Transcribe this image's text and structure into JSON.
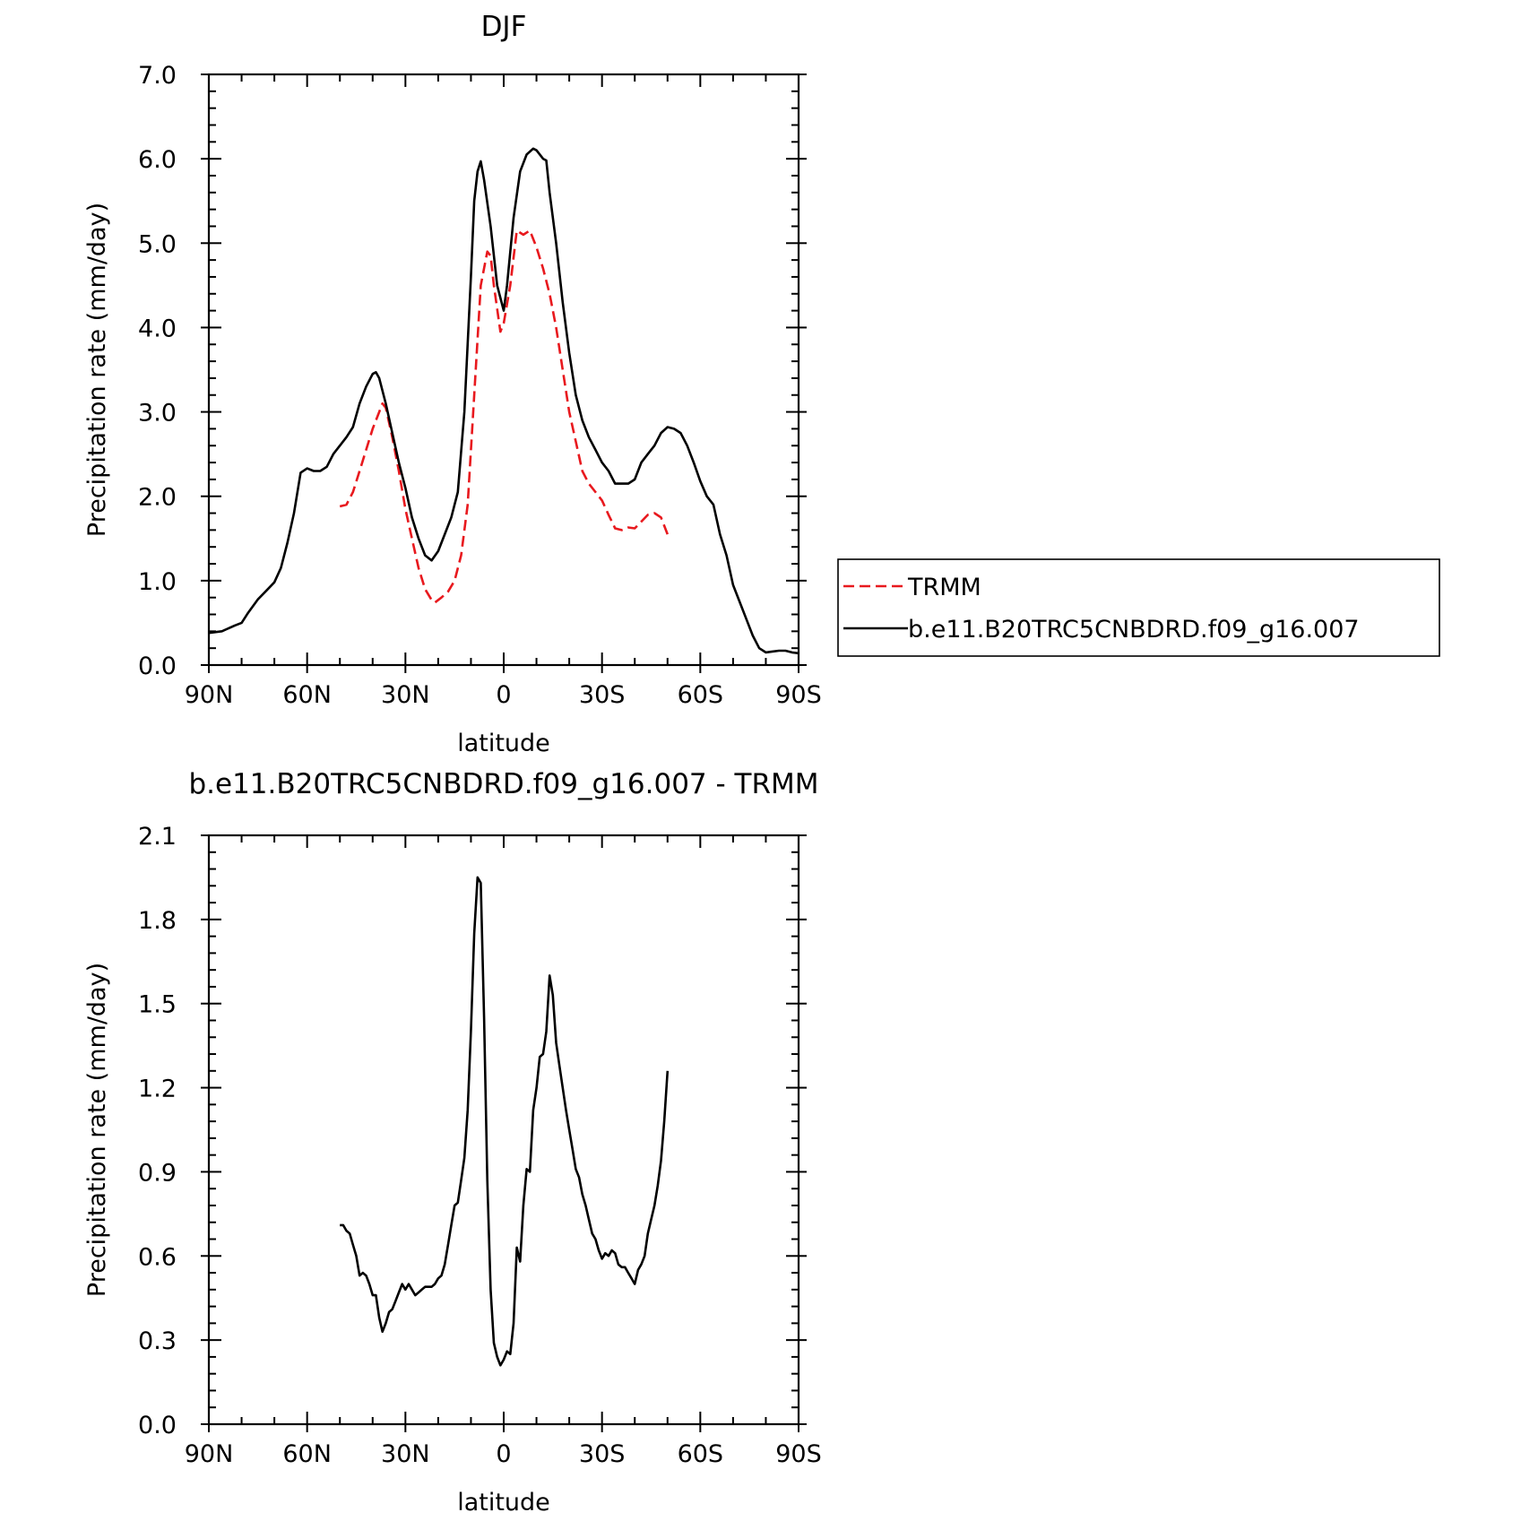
{
  "chart_data": [
    {
      "type": "line",
      "title": "DJF",
      "xlabel": "latitude",
      "ylabel": "Precipitation rate (mm/day)",
      "xlim": [
        90,
        -90
      ],
      "ylim": [
        0,
        7
      ],
      "x_unit": "degrees latitude (positive = N, negative = S)",
      "x_ticks": [
        {
          "value": 90,
          "label": "90N"
        },
        {
          "value": 60,
          "label": "60N"
        },
        {
          "value": 30,
          "label": "30N"
        },
        {
          "value": 0,
          "label": "0"
        },
        {
          "value": -30,
          "label": "30S"
        },
        {
          "value": -60,
          "label": "60S"
        },
        {
          "value": -90,
          "label": "90S"
        }
      ],
      "y_ticks": [
        {
          "value": 0,
          "label": "0.0"
        },
        {
          "value": 1,
          "label": "1.0"
        },
        {
          "value": 2,
          "label": "2.0"
        },
        {
          "value": 3,
          "label": "3.0"
        },
        {
          "value": 4,
          "label": "4.0"
        },
        {
          "value": 5,
          "label": "5.0"
        },
        {
          "value": 6,
          "label": "6.0"
        },
        {
          "value": 7,
          "label": "7.0"
        }
      ],
      "legend": "right",
      "series": [
        {
          "name": "TRMM",
          "color": "#e8191e",
          "dashed": true,
          "points": [
            [
              50,
              1.88
            ],
            [
              48,
              1.9
            ],
            [
              46,
              2.05
            ],
            [
              44,
              2.3
            ],
            [
              42,
              2.55
            ],
            [
              40,
              2.8
            ],
            [
              38,
              3.0
            ],
            [
              37,
              3.1
            ],
            [
              36,
              3.05
            ],
            [
              34,
              2.7
            ],
            [
              32,
              2.3
            ],
            [
              30,
              1.85
            ],
            [
              28,
              1.5
            ],
            [
              26,
              1.15
            ],
            [
              24,
              0.9
            ],
            [
              22,
              0.77
            ],
            [
              21,
              0.74
            ],
            [
              19,
              0.8
            ],
            [
              17,
              0.87
            ],
            [
              15,
              1.0
            ],
            [
              13,
              1.3
            ],
            [
              11,
              1.9
            ],
            [
              9,
              3.2
            ],
            [
              7,
              4.5
            ],
            [
              5,
              4.9
            ],
            [
              4,
              4.85
            ],
            [
              3,
              4.5
            ],
            [
              1,
              3.95
            ],
            [
              0,
              4.05
            ],
            [
              -2,
              4.5
            ],
            [
              -4,
              5.15
            ],
            [
              -6,
              5.1
            ],
            [
              -8,
              5.15
            ],
            [
              -10,
              4.95
            ],
            [
              -12,
              4.7
            ],
            [
              -14,
              4.4
            ],
            [
              -16,
              4.0
            ],
            [
              -18,
              3.5
            ],
            [
              -20,
              3.0
            ],
            [
              -22,
              2.65
            ],
            [
              -24,
              2.3
            ],
            [
              -26,
              2.15
            ],
            [
              -28,
              2.05
            ],
            [
              -30,
              1.95
            ],
            [
              -32,
              1.78
            ],
            [
              -34,
              1.62
            ],
            [
              -36,
              1.6
            ],
            [
              -38,
              1.63
            ],
            [
              -40,
              1.62
            ],
            [
              -42,
              1.7
            ],
            [
              -44,
              1.78
            ],
            [
              -46,
              1.8
            ],
            [
              -48,
              1.75
            ],
            [
              -50,
              1.55
            ]
          ]
        },
        {
          "name": "b.e11.B20TRC5CNBDRD.f09_g16.007",
          "color": "#000000",
          "dashed": false,
          "points": [
            [
              90,
              0.38
            ],
            [
              86,
              0.4
            ],
            [
              82,
              0.47
            ],
            [
              80,
              0.5
            ],
            [
              78,
              0.62
            ],
            [
              75,
              0.78
            ],
            [
              72,
              0.9
            ],
            [
              70,
              0.98
            ],
            [
              68,
              1.15
            ],
            [
              66,
              1.45
            ],
            [
              64,
              1.8
            ],
            [
              62,
              2.28
            ],
            [
              60,
              2.33
            ],
            [
              58,
              2.3
            ],
            [
              56,
              2.3
            ],
            [
              54,
              2.35
            ],
            [
              52,
              2.5
            ],
            [
              50,
              2.6
            ],
            [
              48,
              2.7
            ],
            [
              46,
              2.82
            ],
            [
              44,
              3.1
            ],
            [
              42,
              3.3
            ],
            [
              40,
              3.45
            ],
            [
              39,
              3.47
            ],
            [
              38,
              3.4
            ],
            [
              36,
              3.1
            ],
            [
              34,
              2.75
            ],
            [
              32,
              2.4
            ],
            [
              30,
              2.1
            ],
            [
              28,
              1.75
            ],
            [
              26,
              1.5
            ],
            [
              24,
              1.3
            ],
            [
              22,
              1.24
            ],
            [
              20,
              1.35
            ],
            [
              18,
              1.55
            ],
            [
              16,
              1.75
            ],
            [
              14,
              2.05
            ],
            [
              12,
              3.0
            ],
            [
              10,
              4.6
            ],
            [
              9,
              5.5
            ],
            [
              8,
              5.85
            ],
            [
              7,
              5.97
            ],
            [
              6,
              5.75
            ],
            [
              4,
              5.2
            ],
            [
              2,
              4.5
            ],
            [
              0,
              4.2
            ],
            [
              -1,
              4.5
            ],
            [
              -3,
              5.3
            ],
            [
              -5,
              5.85
            ],
            [
              -7,
              6.05
            ],
            [
              -9,
              6.12
            ],
            [
              -10,
              6.1
            ],
            [
              -12,
              6.0
            ],
            [
              -13,
              5.98
            ],
            [
              -14,
              5.6
            ],
            [
              -16,
              5.0
            ],
            [
              -18,
              4.3
            ],
            [
              -20,
              3.7
            ],
            [
              -22,
              3.2
            ],
            [
              -24,
              2.9
            ],
            [
              -26,
              2.7
            ],
            [
              -28,
              2.55
            ],
            [
              -30,
              2.4
            ],
            [
              -32,
              2.3
            ],
            [
              -34,
              2.15
            ],
            [
              -36,
              2.15
            ],
            [
              -38,
              2.15
            ],
            [
              -40,
              2.2
            ],
            [
              -42,
              2.4
            ],
            [
              -44,
              2.5
            ],
            [
              -46,
              2.6
            ],
            [
              -48,
              2.75
            ],
            [
              -50,
              2.82
            ],
            [
              -52,
              2.8
            ],
            [
              -54,
              2.75
            ],
            [
              -56,
              2.6
            ],
            [
              -58,
              2.4
            ],
            [
              -60,
              2.18
            ],
            [
              -62,
              2.0
            ],
            [
              -64,
              1.9
            ],
            [
              -66,
              1.55
            ],
            [
              -68,
              1.3
            ],
            [
              -70,
              0.95
            ],
            [
              -72,
              0.75
            ],
            [
              -74,
              0.55
            ],
            [
              -76,
              0.35
            ],
            [
              -78,
              0.2
            ],
            [
              -80,
              0.15
            ],
            [
              -82,
              0.16
            ],
            [
              -84,
              0.17
            ],
            [
              -86,
              0.17
            ],
            [
              -88,
              0.15
            ],
            [
              -90,
              0.14
            ]
          ]
        }
      ]
    },
    {
      "type": "line",
      "title": "b.e11.B20TRC5CNBDRD.f09_g16.007 - TRMM",
      "xlabel": "latitude",
      "ylabel": "Precipitation rate (mm/day)",
      "xlim": [
        90,
        -90
      ],
      "ylim": [
        0,
        2.1
      ],
      "x_unit": "degrees latitude (positive = N, negative = S)",
      "x_ticks": [
        {
          "value": 90,
          "label": "90N"
        },
        {
          "value": 60,
          "label": "60N"
        },
        {
          "value": 30,
          "label": "30N"
        },
        {
          "value": 0,
          "label": "0"
        },
        {
          "value": -30,
          "label": "30S"
        },
        {
          "value": -60,
          "label": "60S"
        },
        {
          "value": -90,
          "label": "90S"
        }
      ],
      "y_ticks": [
        {
          "value": 0,
          "label": "0.0"
        },
        {
          "value": 0.3,
          "label": "0.3"
        },
        {
          "value": 0.6,
          "label": "0.6"
        },
        {
          "value": 0.9,
          "label": "0.9"
        },
        {
          "value": 1.2,
          "label": "1.2"
        },
        {
          "value": 1.5,
          "label": "1.5"
        },
        {
          "value": 1.8,
          "label": "1.8"
        },
        {
          "value": 2.1,
          "label": "2.1"
        }
      ],
      "series": [
        {
          "color": "#000000",
          "dashed": false,
          "points": [
            [
              50,
              0.71
            ],
            [
              49,
              0.71
            ],
            [
              48,
              0.69
            ],
            [
              47,
              0.68
            ],
            [
              46,
              0.64
            ],
            [
              45,
              0.6
            ],
            [
              44,
              0.53
            ],
            [
              43,
              0.54
            ],
            [
              42,
              0.53
            ],
            [
              41,
              0.5
            ],
            [
              40,
              0.46
            ],
            [
              39,
              0.46
            ],
            [
              38,
              0.38
            ],
            [
              37,
              0.33
            ],
            [
              36,
              0.36
            ],
            [
              35,
              0.4
            ],
            [
              34,
              0.41
            ],
            [
              33,
              0.44
            ],
            [
              32,
              0.47
            ],
            [
              31,
              0.5
            ],
            [
              30,
              0.48
            ],
            [
              29,
              0.5
            ],
            [
              28,
              0.48
            ],
            [
              27,
              0.46
            ],
            [
              26,
              0.47
            ],
            [
              25,
              0.48
            ],
            [
              24,
              0.49
            ],
            [
              23,
              0.49
            ],
            [
              22,
              0.49
            ],
            [
              21,
              0.5
            ],
            [
              20,
              0.52
            ],
            [
              19,
              0.53
            ],
            [
              18,
              0.57
            ],
            [
              17,
              0.64
            ],
            [
              16,
              0.71
            ],
            [
              15,
              0.78
            ],
            [
              14,
              0.79
            ],
            [
              13,
              0.87
            ],
            [
              12,
              0.95
            ],
            [
              11,
              1.12
            ],
            [
              10,
              1.4
            ],
            [
              9,
              1.75
            ],
            [
              8,
              1.95
            ],
            [
              7,
              1.93
            ],
            [
              6,
              1.45
            ],
            [
              5,
              0.87
            ],
            [
              4,
              0.48
            ],
            [
              3,
              0.29
            ],
            [
              2,
              0.24
            ],
            [
              1,
              0.21
            ],
            [
              0,
              0.23
            ],
            [
              -1,
              0.26
            ],
            [
              -2,
              0.25
            ],
            [
              -3,
              0.36
            ],
            [
              -4,
              0.63
            ],
            [
              -5,
              0.58
            ],
            [
              -6,
              0.78
            ],
            [
              -7,
              0.91
            ],
            [
              -8,
              0.9
            ],
            [
              -9,
              1.12
            ],
            [
              -10,
              1.2
            ],
            [
              -11,
              1.31
            ],
            [
              -12,
              1.32
            ],
            [
              -13,
              1.4
            ],
            [
              -14,
              1.6
            ],
            [
              -15,
              1.53
            ],
            [
              -16,
              1.36
            ],
            [
              -17,
              1.28
            ],
            [
              -18,
              1.2
            ],
            [
              -19,
              1.12
            ],
            [
              -20,
              1.05
            ],
            [
              -21,
              0.98
            ],
            [
              -22,
              0.91
            ],
            [
              -23,
              0.88
            ],
            [
              -24,
              0.82
            ],
            [
              -25,
              0.78
            ],
            [
              -26,
              0.73
            ],
            [
              -27,
              0.68
            ],
            [
              -28,
              0.66
            ],
            [
              -29,
              0.62
            ],
            [
              -30,
              0.59
            ],
            [
              -31,
              0.61
            ],
            [
              -32,
              0.6
            ],
            [
              -33,
              0.62
            ],
            [
              -34,
              0.61
            ],
            [
              -35,
              0.57
            ],
            [
              -36,
              0.56
            ],
            [
              -37,
              0.56
            ],
            [
              -38,
              0.54
            ],
            [
              -39,
              0.52
            ],
            [
              -40,
              0.5
            ],
            [
              -41,
              0.55
            ],
            [
              -42,
              0.57
            ],
            [
              -43,
              0.6
            ],
            [
              -44,
              0.68
            ],
            [
              -45,
              0.73
            ],
            [
              -46,
              0.78
            ],
            [
              -47,
              0.85
            ],
            [
              -48,
              0.94
            ],
            [
              -49,
              1.08
            ],
            [
              -50,
              1.26
            ]
          ]
        }
      ]
    }
  ]
}
